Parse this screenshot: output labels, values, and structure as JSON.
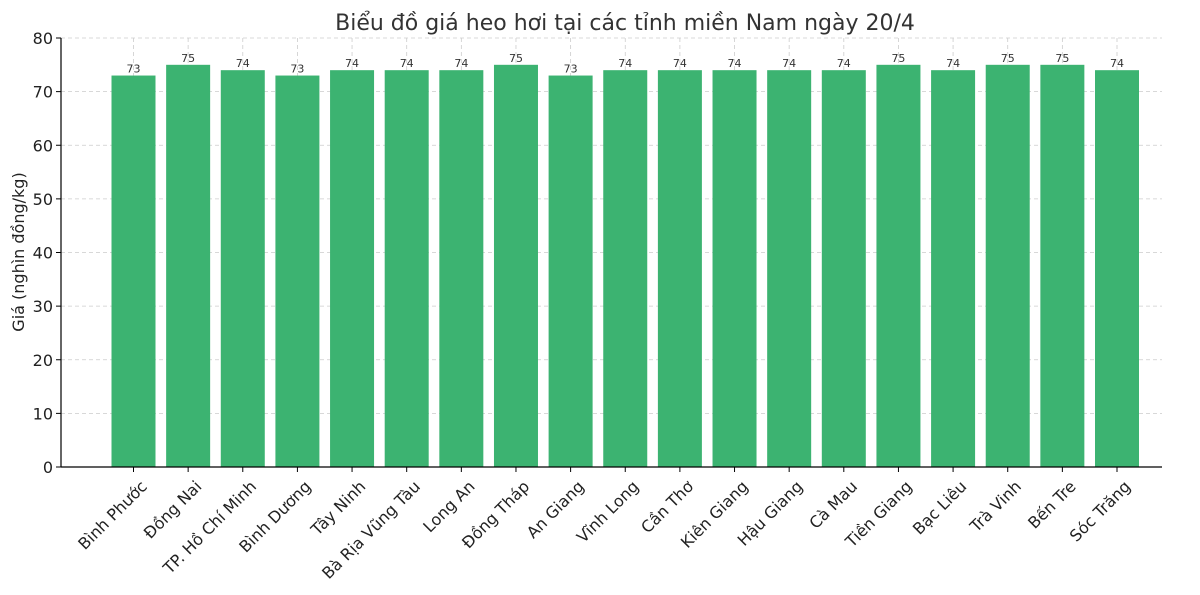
{
  "chart_data": {
    "type": "bar",
    "title": "Biểu đồ giá heo hơi tại các tỉnh miền Nam ngày 20/4",
    "xlabel": "",
    "ylabel": "Giá (nghìn đồng/kg)",
    "ylim": [
      0,
      80
    ],
    "yticks": [
      0,
      10,
      20,
      30,
      40,
      50,
      60,
      70,
      80
    ],
    "grid": true,
    "bar_color": "#3cb371",
    "categories": [
      "Bình Phước",
      "Đồng Nai",
      "TP. Hồ Chí Minh",
      "Bình Dương",
      "Tây Ninh",
      "Bà Rịa  Vũng Tàu",
      "Long An",
      "Đồng Tháp",
      "An Giang",
      "Vĩnh Long",
      "Cần Thơ",
      "Kiên Giang",
      "Hậu Giang",
      "Cà Mau",
      "Tiền Giang",
      "Bạc Liêu",
      "Trà Vinh",
      "Bến Tre",
      "Sóc Trăng"
    ],
    "values": [
      73,
      75,
      74,
      73,
      74,
      74,
      74,
      75,
      73,
      74,
      74,
      74,
      74,
      74,
      75,
      74,
      75,
      75,
      74
    ]
  }
}
